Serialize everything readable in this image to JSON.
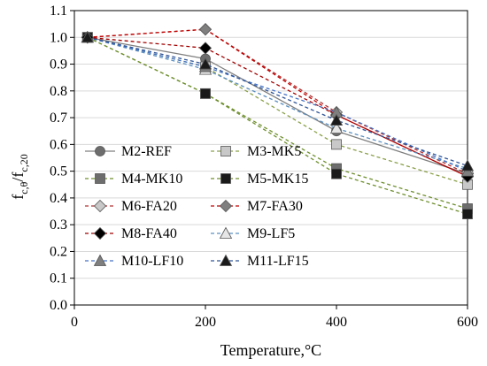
{
  "chart_data": {
    "type": "line",
    "xlabel": "Temperature,°C",
    "ylabel": {
      "base": "f",
      "sub1": "c,θ",
      "slash": "/f",
      "sub2": "c,20"
    },
    "xlim": [
      0,
      600
    ],
    "ylim": [
      0.0,
      1.1
    ],
    "xticks": [
      "0",
      "200",
      "400",
      "600"
    ],
    "yticks": [
      "0.0",
      "0.1",
      "0.2",
      "0.3",
      "0.4",
      "0.5",
      "0.6",
      "0.7",
      "0.8",
      "0.9",
      "1.0",
      "1.1"
    ],
    "grid": "horizontal",
    "legend_placement": "inside-lower-left",
    "x": [
      20,
      200,
      400,
      600
    ],
    "series": [
      {
        "name": "M2-REF",
        "values": [
          1.0,
          0.92,
          0.65,
          0.49
        ],
        "color": "#7f7f7f",
        "dash": "none",
        "marker": "circle",
        "fill": "#6d6d6d"
      },
      {
        "name": "M3-MK5",
        "values": [
          1.0,
          0.89,
          0.6,
          0.45
        ],
        "color": "#8aa04a",
        "dash": "4,3",
        "marker": "square",
        "fill": "#c8c8c8"
      },
      {
        "name": "M4-MK10",
        "values": [
          1.0,
          0.79,
          0.51,
          0.36
        ],
        "color": "#6f8f2f",
        "dash": "4,3",
        "marker": "square",
        "fill": "#6d6d6d"
      },
      {
        "name": "M5-MK15",
        "values": [
          1.0,
          0.79,
          0.49,
          0.34
        ],
        "color": "#6f8f2f",
        "dash": "4,3",
        "marker": "square",
        "fill": "#1a1a1a"
      },
      {
        "name": "M6-FA20",
        "values": [
          1.0,
          1.03,
          0.72,
          0.49
        ],
        "color": "#b03030",
        "dash": "4,3",
        "marker": "diamond",
        "fill": "#c8c8c8"
      },
      {
        "name": "M7-FA30",
        "values": [
          1.0,
          1.03,
          0.71,
          0.48
        ],
        "color": "#c00000",
        "dash": "4,3",
        "marker": "diamond",
        "fill": "#7f7f7f"
      },
      {
        "name": "M8-FA40",
        "values": [
          1.0,
          0.96,
          0.71,
          0.48
        ],
        "color": "#a00000",
        "dash": "4,3",
        "marker": "diamond",
        "fill": "#000000"
      },
      {
        "name": "M9-LF5",
        "values": [
          1.0,
          0.88,
          0.66,
          0.51
        ],
        "color": "#5b8fbf",
        "dash": "4,3",
        "marker": "triangle",
        "fill": "#e6e6e6"
      },
      {
        "name": "M10-LF10",
        "values": [
          1.0,
          0.89,
          0.72,
          0.5
        ],
        "color": "#4472c4",
        "dash": "4,3",
        "marker": "triangle",
        "fill": "#7f7f7f"
      },
      {
        "name": "M11-LF15",
        "values": [
          1.0,
          0.9,
          0.69,
          0.52
        ],
        "color": "#2f5597",
        "dash": "4,3",
        "marker": "triangle",
        "fill": "#1a1a1a"
      }
    ]
  }
}
